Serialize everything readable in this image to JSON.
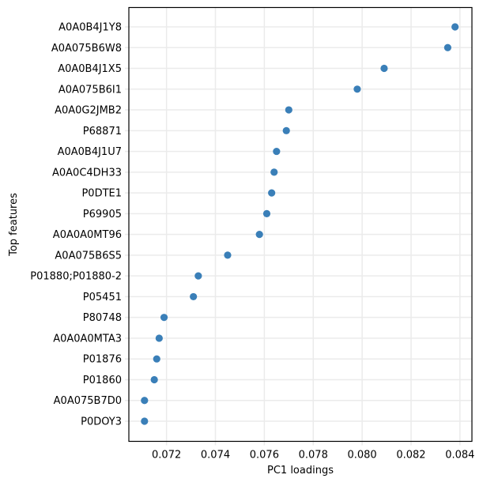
{
  "chart_data": {
    "type": "scatter",
    "title": "",
    "xlabel": "PC1 loadings",
    "ylabel": "Top features",
    "xlim": [
      0.07046,
      0.08449
    ],
    "xticks": [
      0.072,
      0.074,
      0.076,
      0.078,
      0.08,
      0.082,
      0.084
    ],
    "xtick_labels": [
      "0.072",
      "0.074",
      "0.076",
      "0.078",
      "0.080",
      "0.082",
      "0.084"
    ],
    "grid": true,
    "legend": null,
    "marker_color": "#3a7fb8",
    "categories": [
      "A0A0B4J1Y8",
      "A0A075B6W8",
      "A0A0B4J1X5",
      "A0A075B6I1",
      "A0A0G2JMB2",
      "P68871",
      "A0A0B4J1U7",
      "A0A0C4DH33",
      "P0DTE1",
      "P69905",
      "A0A0A0MT96",
      "A0A075B6S5",
      "P01880;P01880-2",
      "P05451",
      "P80748",
      "A0A0A0MTA3",
      "P01876",
      "P01860",
      "A0A075B7D0",
      "P0DOY3"
    ],
    "values": [
      0.0838,
      0.0835,
      0.0809,
      0.0798,
      0.077,
      0.0769,
      0.0765,
      0.0764,
      0.0763,
      0.0761,
      0.0758,
      0.0745,
      0.0733,
      0.0731,
      0.0719,
      0.0717,
      0.0716,
      0.0715,
      0.0711,
      0.0711
    ]
  },
  "colors": {
    "marker": "#3a7fb8",
    "grid": "#ebebeb",
    "axis": "#000000",
    "tick": "#d9d9d9"
  }
}
